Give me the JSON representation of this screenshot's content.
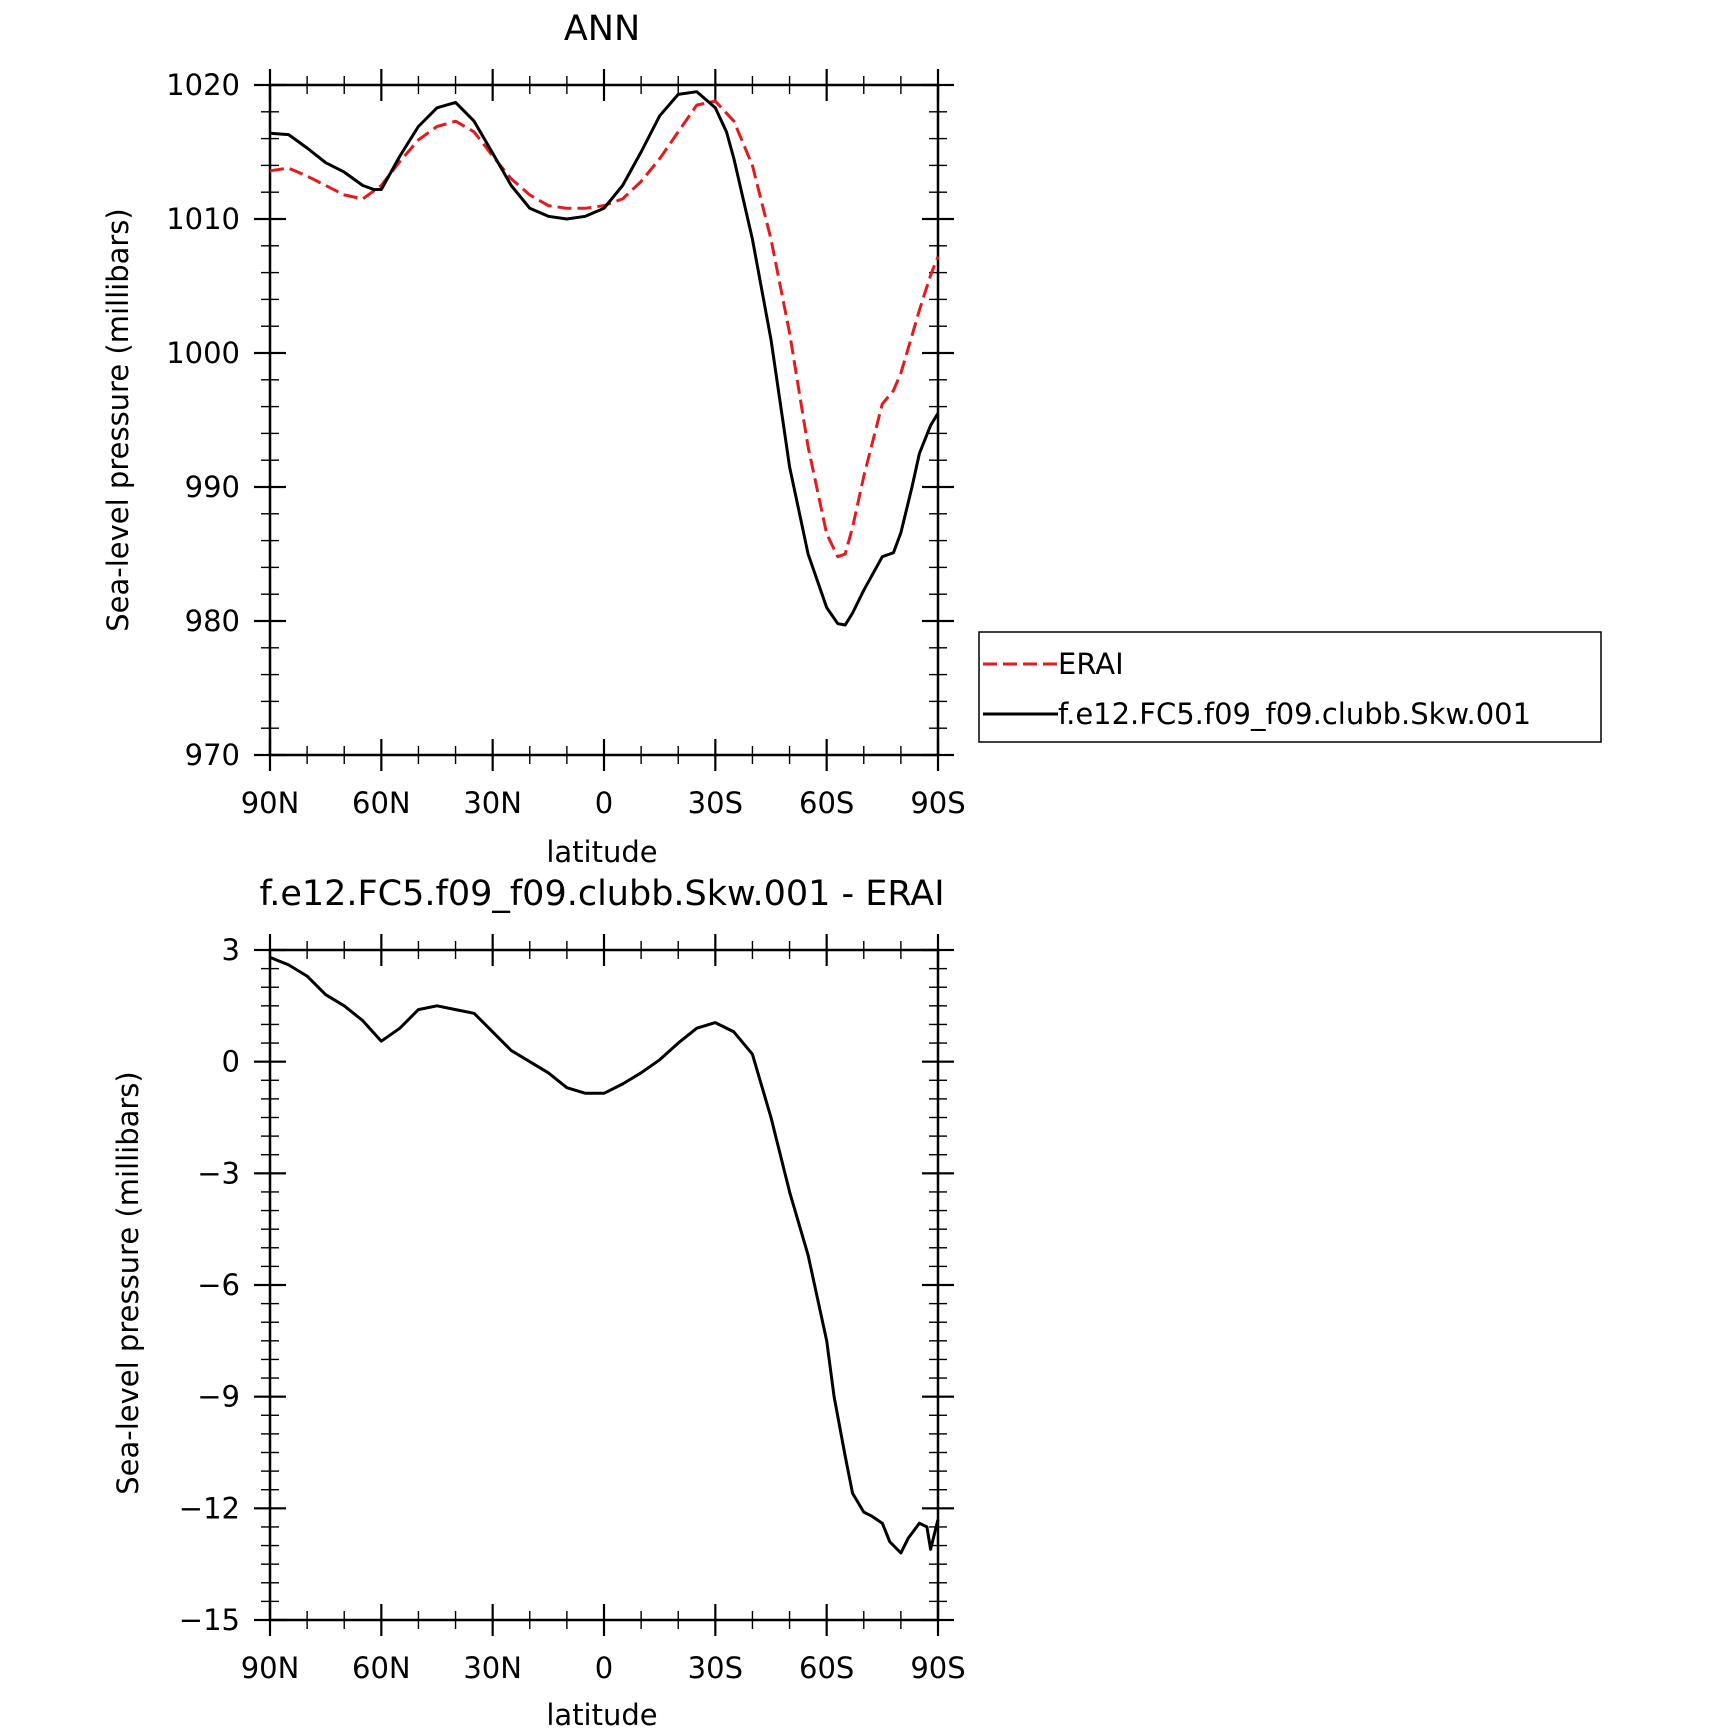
{
  "figure": {
    "legend": {
      "entries": [
        {
          "label": "ERAI",
          "color": "#e41a1c",
          "dash": "dashed"
        },
        {
          "label": "f.e12.FC5.f09_f09.clubb.Skw.001",
          "color": "#000000",
          "dash": "solid"
        }
      ]
    }
  },
  "chart_data": [
    {
      "type": "line",
      "title": "ANN",
      "xlabel": "latitude",
      "ylabel": "Sea-level pressure (millibars)",
      "x_direction": "north-to-south",
      "xlim": [
        90,
        -90
      ],
      "ylim": [
        970,
        1020
      ],
      "x_ticks": [
        {
          "value": 90,
          "label": "90N"
        },
        {
          "value": 60,
          "label": "60N"
        },
        {
          "value": 30,
          "label": "30N"
        },
        {
          "value": 0,
          "label": "0"
        },
        {
          "value": -30,
          "label": "30S"
        },
        {
          "value": -60,
          "label": "60S"
        },
        {
          "value": -90,
          "label": "90S"
        }
      ],
      "y_ticks": [
        {
          "value": 1020,
          "label": "1020"
        },
        {
          "value": 1010,
          "label": "1010"
        },
        {
          "value": 1000,
          "label": "1000"
        },
        {
          "value": 990,
          "label": "990"
        },
        {
          "value": 980,
          "label": "980"
        },
        {
          "value": 970,
          "label": "970"
        }
      ],
      "legend_position": "right",
      "series": [
        {
          "name": "ERAI",
          "color": "#e41a1c",
          "dash": "dashed",
          "x": [
            90,
            85,
            80,
            75,
            70,
            65,
            60,
            55,
            50,
            45,
            40,
            35,
            30,
            25,
            20,
            15,
            10,
            5,
            0,
            -5,
            -10,
            -15,
            -20,
            -25,
            -30,
            -35,
            -40,
            -45,
            -50,
            -55,
            -60,
            -63,
            -65,
            -67,
            -70,
            -75,
            -78,
            -80,
            -83,
            -85,
            -88,
            -90
          ],
          "y": [
            1013.6,
            1013.8,
            1013.2,
            1012.5,
            1011.8,
            1011.5,
            1012.5,
            1014.3,
            1015.9,
            1016.9,
            1017.3,
            1016.5,
            1014.7,
            1013.0,
            1011.8,
            1011.0,
            1010.8,
            1010.8,
            1011.0,
            1011.5,
            1012.8,
            1014.5,
            1016.5,
            1018.5,
            1018.8,
            1017.3,
            1014.0,
            1008.5,
            1001.5,
            993.0,
            986.5,
            984.8,
            985.0,
            987.0,
            990.8,
            996.2,
            997.2,
            998.5,
            1001.3,
            1003.2,
            1005.8,
            1007.2
          ]
        },
        {
          "name": "f.e12.FC5.f09_f09.clubb.Skw.001",
          "color": "#000000",
          "dash": "solid",
          "x": [
            90,
            85,
            80,
            75,
            70,
            65,
            62,
            60,
            55,
            50,
            45,
            40,
            35,
            30,
            25,
            20,
            15,
            10,
            5,
            0,
            -5,
            -10,
            -15,
            -20,
            -25,
            -30,
            -33,
            -35,
            -40,
            -45,
            -50,
            -55,
            -60,
            -63,
            -65,
            -67,
            -70,
            -75,
            -78,
            -80,
            -83,
            -85,
            -88,
            -90
          ],
          "y": [
            1016.4,
            1016.3,
            1015.3,
            1014.2,
            1013.5,
            1012.5,
            1012.2,
            1012.2,
            1014.7,
            1016.9,
            1018.3,
            1018.7,
            1017.3,
            1014.9,
            1012.5,
            1010.8,
            1010.2,
            1010.0,
            1010.2,
            1010.8,
            1012.5,
            1015.0,
            1017.7,
            1019.3,
            1019.5,
            1018.3,
            1016.5,
            1014.5,
            1008.5,
            1001.0,
            991.5,
            985.0,
            981.0,
            979.8,
            979.7,
            980.6,
            982.3,
            984.8,
            985.1,
            986.6,
            990.0,
            992.5,
            994.6,
            995.5
          ]
        }
      ]
    },
    {
      "type": "line",
      "title": "f.e12.FC5.f09_f09.clubb.Skw.001 - ERAI",
      "xlabel": "latitude",
      "ylabel": "Sea-level pressure (millibars)",
      "x_direction": "north-to-south",
      "xlim": [
        90,
        -90
      ],
      "ylim": [
        -15,
        3
      ],
      "x_ticks": [
        {
          "value": 90,
          "label": "90N"
        },
        {
          "value": 60,
          "label": "60N"
        },
        {
          "value": 30,
          "label": "30N"
        },
        {
          "value": 0,
          "label": "0"
        },
        {
          "value": -30,
          "label": "30S"
        },
        {
          "value": -60,
          "label": "60S"
        },
        {
          "value": -90,
          "label": "90S"
        }
      ],
      "y_ticks": [
        {
          "value": 3,
          "label": "3"
        },
        {
          "value": 0,
          "label": "0"
        },
        {
          "value": -3,
          "label": "−3"
        },
        {
          "value": -6,
          "label": "−6"
        },
        {
          "value": -9,
          "label": "−9"
        },
        {
          "value": -12,
          "label": "−12"
        },
        {
          "value": -15,
          "label": "−15"
        }
      ],
      "series": [
        {
          "name": "f.e12.FC5.f09_f09.clubb.Skw.001 - ERAI",
          "color": "#000000",
          "dash": "solid",
          "x": [
            90,
            85,
            80,
            75,
            70,
            65,
            60,
            55,
            50,
            45,
            40,
            35,
            30,
            25,
            20,
            15,
            10,
            5,
            0,
            -5,
            -10,
            -15,
            -20,
            -25,
            -30,
            -35,
            -40,
            -45,
            -50,
            -55,
            -60,
            -62,
            -65,
            -67,
            -70,
            -72,
            -75,
            -77,
            -80,
            -82,
            -85,
            -87,
            -88,
            -90
          ],
          "y": [
            2.8,
            2.6,
            2.3,
            1.8,
            1.5,
            1.1,
            0.55,
            0.9,
            1.4,
            1.5,
            1.4,
            1.3,
            0.8,
            0.3,
            0.0,
            -0.3,
            -0.7,
            -0.85,
            -0.85,
            -0.6,
            -0.3,
            0.05,
            0.5,
            0.9,
            1.05,
            0.8,
            0.2,
            -1.5,
            -3.5,
            -5.2,
            -7.5,
            -9.0,
            -10.6,
            -11.6,
            -12.1,
            -12.2,
            -12.4,
            -12.9,
            -13.2,
            -12.8,
            -12.4,
            -12.5,
            -13.1,
            -12.3
          ]
        }
      ]
    }
  ]
}
